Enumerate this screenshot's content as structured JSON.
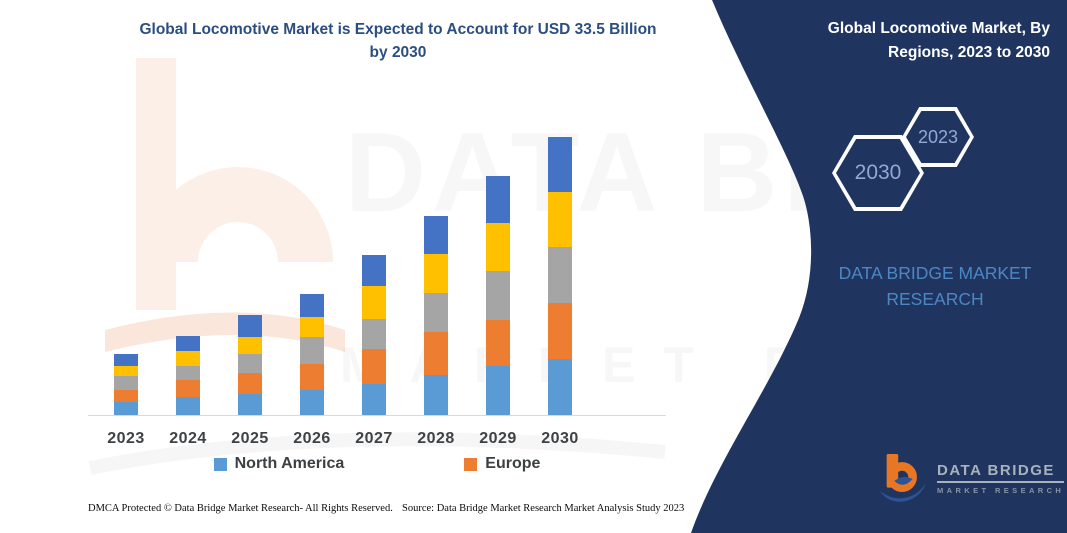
{
  "colors": {
    "navy_panel": "#1F3560",
    "title_blue": "#2B4E82",
    "brand_light_blue": "#4C87C5",
    "hex_label": "#93A9D4",
    "axis_label": "#3F4245",
    "logo_orange": "#E87725",
    "logo_blue": "#2F5496",
    "watermark_peach": "#FCEFE8"
  },
  "header": {
    "title_line1": "Global Locomotive Market is Expected to Account for USD 33.5 Billion",
    "title_line2": "by 2030"
  },
  "side_panel": {
    "title": "Global Locomotive Market, By Regions, 2023 to 2030",
    "hexagons": [
      {
        "label": "2030"
      },
      {
        "label": "2023"
      }
    ],
    "brand_text": "DATA BRIDGE MARKET RESEARCH"
  },
  "legend": [
    {
      "label": "North America",
      "color": "#5B9BD5"
    },
    {
      "label": "Europe",
      "color": "#ED7D31"
    }
  ],
  "chart_data": {
    "type": "bar",
    "stacked": true,
    "title": "Global Locomotive Market is Expected to Account for USD 33.5 Billion by 2030",
    "unit": "USD Billion",
    "categories": [
      "2023",
      "2024",
      "2025",
      "2026",
      "2027",
      "2028",
      "2029",
      "2030"
    ],
    "series": [
      {
        "name": "North America",
        "color": "#5B9BD5",
        "in_legend": true,
        "values": [
          1.6,
          2.2,
          2.5,
          3.0,
          3.8,
          4.8,
          5.9,
          6.8
        ]
      },
      {
        "name": "Europe",
        "color": "#ED7D31",
        "in_legend": true,
        "values": [
          1.4,
          2.0,
          2.6,
          3.1,
          4.2,
          5.2,
          5.6,
          6.7
        ]
      },
      {
        "name": "Unlabeled (gray)",
        "color": "#A5A5A5",
        "in_legend": false,
        "values": [
          1.7,
          1.7,
          2.2,
          3.3,
          3.6,
          4.7,
          5.9,
          6.8
        ]
      },
      {
        "name": "Unlabeled (yellow)",
        "color": "#FFC000",
        "in_legend": false,
        "values": [
          1.2,
          1.8,
          2.1,
          2.4,
          3.9,
          4.7,
          5.7,
          6.6
        ]
      },
      {
        "name": "Unlabeled (dark blue)",
        "color": "#4472C4",
        "in_legend": false,
        "values": [
          1.5,
          1.8,
          2.7,
          2.8,
          3.8,
          4.6,
          5.7,
          6.6
        ]
      }
    ],
    "totals": [
      7.4,
      9.5,
      12.1,
      14.6,
      19.3,
      24.0,
      28.8,
      33.5
    ],
    "ylim": [
      0,
      33.5
    ],
    "y_axis_shown": false,
    "gridlines": false,
    "legend_position": "bottom"
  },
  "watermarks": {
    "brand": "DATA BRIDGE",
    "sub": "MARKET RESEARCH"
  },
  "logo": {
    "line1": "DATA BRIDGE",
    "line2": "MARKET RESEARCH"
  },
  "footer": {
    "left": "DMCA Protected © Data Bridge Market Research-  All Rights Reserved.",
    "right": "Source: Data Bridge Market Research  Market Analysis Study 2023"
  }
}
